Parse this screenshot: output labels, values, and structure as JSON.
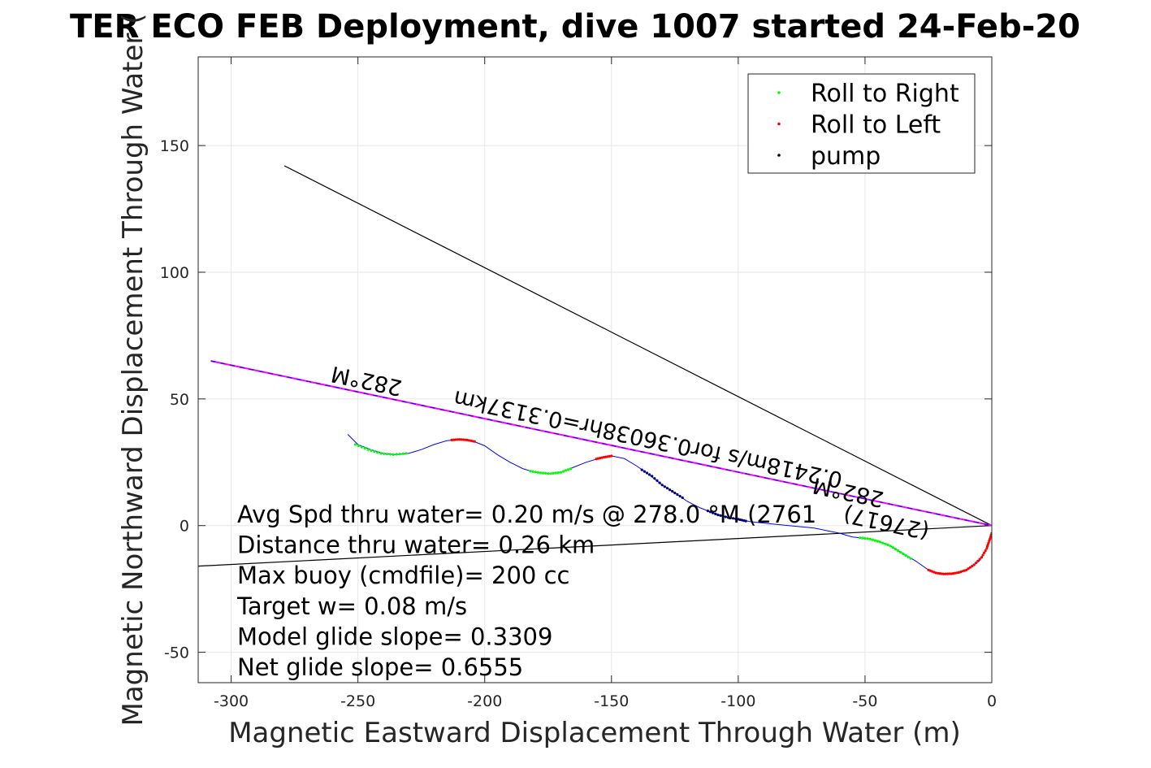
{
  "chart_data": {
    "type": "line",
    "title": "TER ECO FEB Deployment, dive 1007 started 24-Feb-20",
    "xlabel": "Magnetic Eastward Displacement Through Water (m)",
    "ylabel": "Magnetic Northward Displacement Through Water (",
    "xlim": [
      -313,
      0
    ],
    "ylim": [
      -62,
      185
    ],
    "xticks": [
      -300,
      -250,
      -200,
      -150,
      -100,
      -50,
      0
    ],
    "yticks": [
      -50,
      0,
      50,
      100,
      150
    ],
    "grid": true,
    "legend_position": "top-right",
    "legend": [
      {
        "label": "Roll to Right",
        "color": "#00ff00"
      },
      {
        "label": "Roll to Left",
        "color": "#ff0000"
      },
      {
        "label": "pump",
        "color": "#000000"
      }
    ],
    "track": {
      "name": "track",
      "color": "#0000ff",
      "points": [
        [
          -254,
          36
        ],
        [
          -250,
          32
        ],
        [
          -245,
          30
        ],
        [
          -240,
          28.5
        ],
        [
          -235,
          28
        ],
        [
          -230,
          28.5
        ],
        [
          -225,
          30
        ],
        [
          -220,
          32
        ],
        [
          -215,
          33.5
        ],
        [
          -210,
          34
        ],
        [
          -205,
          33.5
        ],
        [
          -200,
          31.5
        ],
        [
          -195,
          28
        ],
        [
          -190,
          25
        ],
        [
          -185,
          22.5
        ],
        [
          -180,
          21
        ],
        [
          -175,
          20.5
        ],
        [
          -170,
          21
        ],
        [
          -165,
          23
        ],
        [
          -160,
          25
        ],
        [
          -155,
          26.5
        ],
        [
          -150,
          27.5
        ],
        [
          -145,
          26.5
        ],
        [
          -140,
          23.5
        ],
        [
          -135,
          20
        ],
        [
          -130,
          16
        ],
        [
          -125,
          13
        ],
        [
          -120,
          9.5
        ],
        [
          -115,
          7
        ],
        [
          -110,
          5
        ],
        [
          -105,
          3.5
        ],
        [
          -100,
          2.5
        ],
        [
          -95,
          1.5
        ],
        [
          -90,
          1
        ],
        [
          -85,
          0.5
        ],
        [
          -80,
          0
        ],
        [
          -75,
          -0.5
        ],
        [
          -70,
          -1
        ],
        [
          -65,
          -2
        ],
        [
          -60,
          -3
        ],
        [
          -55,
          -4.5
        ],
        [
          -50,
          -5
        ],
        [
          -45,
          -6
        ],
        [
          -40,
          -8
        ],
        [
          -35,
          -11
        ],
        [
          -30,
          -14
        ],
        [
          -25,
          -17.5
        ],
        [
          -20,
          -19
        ],
        [
          -15,
          -19
        ],
        [
          -10,
          -17.5
        ],
        [
          -5,
          -14
        ],
        [
          -2,
          -9
        ],
        [
          0,
          -3
        ],
        [
          0,
          0
        ]
      ]
    },
    "roll_right_segments": [
      [
        [
          -251,
          32
        ],
        [
          -246,
          30
        ],
        [
          -241,
          28.5
        ],
        [
          -236,
          28
        ],
        [
          -231,
          28.5
        ]
      ],
      [
        [
          -182,
          21.5
        ],
        [
          -178,
          20.8
        ],
        [
          -174,
          20.5
        ],
        [
          -170,
          21
        ],
        [
          -166,
          22.5
        ]
      ],
      [
        [
          -52,
          -4.8
        ],
        [
          -48,
          -5.3
        ],
        [
          -44,
          -6.5
        ],
        [
          -40,
          -8
        ],
        [
          -36,
          -10.5
        ],
        [
          -32,
          -13
        ]
      ]
    ],
    "roll_left_segments": [
      [
        [
          -213,
          33.8
        ],
        [
          -210,
          34
        ],
        [
          -207,
          33.8
        ],
        [
          -204,
          33.2
        ]
      ],
      [
        [
          -156,
          26.3
        ],
        [
          -153,
          27
        ],
        [
          -150,
          27.5
        ]
      ],
      [
        [
          -25,
          -17.5
        ],
        [
          -22,
          -18.7
        ],
        [
          -19,
          -19.1
        ],
        [
          -16,
          -19
        ],
        [
          -13,
          -18.5
        ],
        [
          -10,
          -17.5
        ],
        [
          -7,
          -15.5
        ],
        [
          -4,
          -12.5
        ],
        [
          -2,
          -9
        ],
        [
          -1,
          -6
        ],
        [
          0,
          -3
        ]
      ]
    ],
    "pump_segments": [
      [
        [
          -138,
          22
        ],
        [
          -134,
          19.5
        ],
        [
          -130,
          16
        ],
        [
          -126,
          13.5
        ],
        [
          -122,
          11
        ]
      ],
      [
        [
          -112,
          5.8
        ],
        [
          -108,
          4.2
        ],
        [
          -104,
          3.2
        ],
        [
          -100,
          2.5
        ],
        [
          -97,
          1.8
        ]
      ]
    ],
    "heading_lines": [
      {
        "name": "heading-282M",
        "color": "#ff00ff",
        "points": [
          [
            -308,
            65
          ],
          [
            0,
            0
          ]
        ]
      },
      {
        "name": "avg-heading",
        "color": "#0000ff",
        "points": [
          [
            -308,
            65
          ],
          [
            0,
            0
          ]
        ]
      }
    ],
    "black_lines": [
      {
        "name": "current-line-upper",
        "points": [
          [
            -279,
            142
          ],
          [
            0,
            0
          ]
        ]
      },
      {
        "name": "current-line-lower",
        "points": [
          [
            -313,
            -16
          ],
          [
            0,
            0
          ]
        ]
      }
    ],
    "rotated_annotations": [
      {
        "text": "282°M",
        "x": -246,
        "y": 60,
        "angle": 192
      },
      {
        "text": "0.2418m/s for0.36038hr=0.3137km",
        "x": -135,
        "y": 37,
        "angle": 192
      },
      {
        "text": "282°M",
        "x": -56,
        "y": 16,
        "angle": 192
      },
      {
        "text": "(27617)",
        "x": -41,
        "y": 4,
        "angle": 192
      }
    ],
    "annotations": [
      "Avg Spd thru water=  0.20 m/s @ 278.0 °M (2761",
      "Distance thru water=  0.26 km",
      "Max buoy (cmdfile)= 200 cc",
      "Target w= 0.08 m/s",
      "Model glide slope= 0.3309",
      "Net glide slope= 0.6555"
    ]
  }
}
